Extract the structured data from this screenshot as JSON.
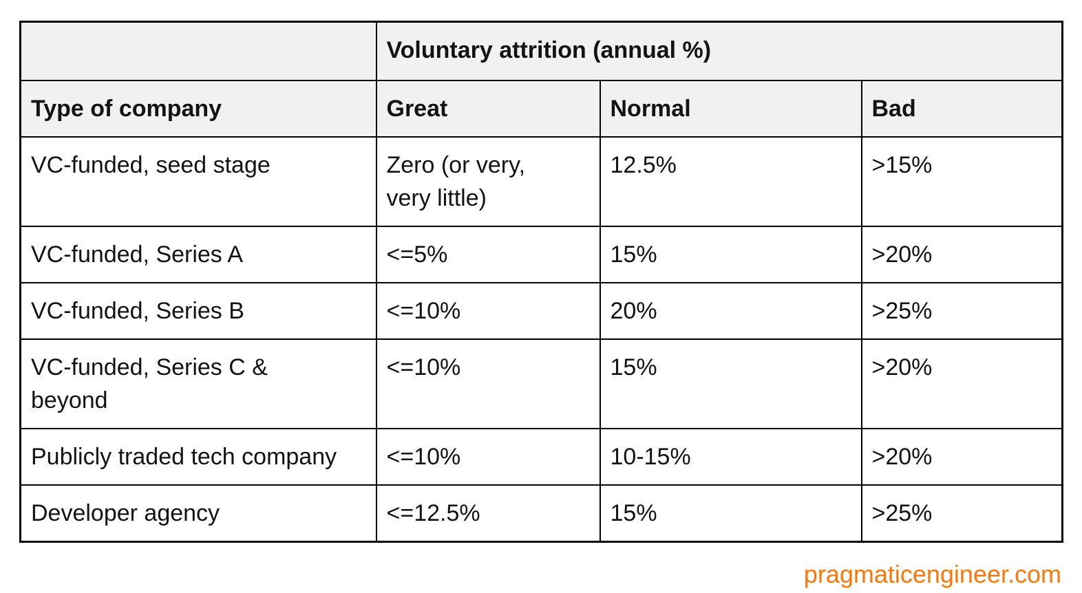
{
  "chart_data": {
    "type": "table",
    "spanning_header": "Voluntary attrition (annual %)",
    "columns": {
      "company": "Type of company",
      "great": "Great",
      "normal": "Normal",
      "bad": "Bad"
    },
    "rows": [
      {
        "company": "VC-funded, seed stage",
        "great": "Zero (or very,\nvery little)",
        "normal": "12.5%",
        "bad": ">15%"
      },
      {
        "company": "VC-funded, Series A",
        "great": "<=5%",
        "normal": "15%",
        "bad": ">20%"
      },
      {
        "company": "VC-funded, Series B",
        "great": "<=10%",
        "normal": "20%",
        "bad": ">25%"
      },
      {
        "company": "VC-funded, Series C &\nbeyond",
        "great": "<=10%",
        "normal": "15%",
        "bad": ">20%"
      },
      {
        "company": "Publicly traded tech company",
        "great": "<=10%",
        "normal": "10-15%",
        "bad": ">20%"
      },
      {
        "company": "Developer agency",
        "great": "<=12.5%",
        "normal": "15%",
        "bad": ">25%"
      }
    ]
  },
  "footer": {
    "watermark": "pragmaticengineer.com"
  },
  "colors": {
    "accent_orange": "#F8790B",
    "header_bg": "#F1F1F2",
    "border": "#000000",
    "text": "#131313"
  }
}
